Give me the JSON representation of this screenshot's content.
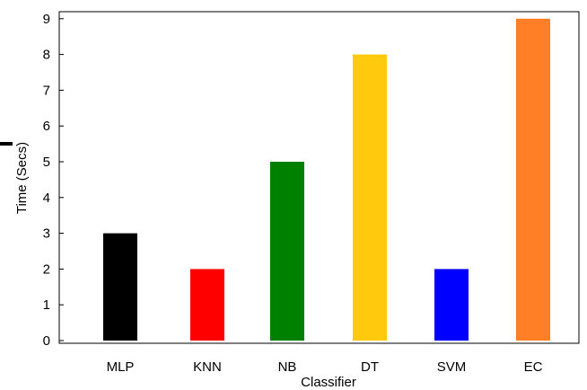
{
  "chart_data": {
    "type": "bar",
    "title": "",
    "xlabel": "Classifier",
    "ylabel": "Time (Secs)",
    "categories": [
      "MLP",
      "KNN",
      "NB",
      "DT",
      "SVM",
      "EC"
    ],
    "values": [
      3,
      2,
      5,
      8,
      2,
      9
    ],
    "colors": [
      "#000000",
      "#ff0000",
      "#008000",
      "#ffc90e",
      "#0000ff",
      "#ff7f27"
    ],
    "ylim": [
      0,
      9
    ],
    "yticks": [
      "0",
      "1",
      "2",
      "3",
      "4",
      "5",
      "6",
      "7",
      "8",
      "9"
    ],
    "grid": false,
    "legend": "none"
  }
}
